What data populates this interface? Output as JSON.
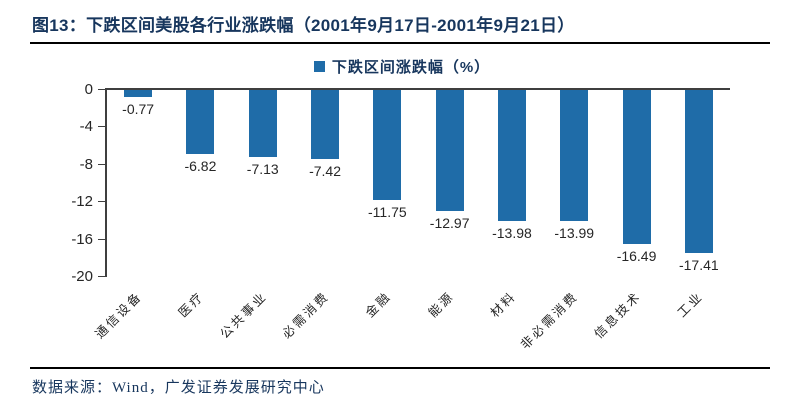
{
  "header": {
    "title": "图13：下跌区间美股各行业涨跌幅（2001年9月17日-2001年9月21日）"
  },
  "legend": {
    "label": "下跌区间涨跌幅（%）",
    "marker_color": "#1f6ca8"
  },
  "footer": {
    "source": "数据来源：Wind，广发证券发展研究中心"
  },
  "chart_data": {
    "type": "bar",
    "title": "下跌区间美股各行业涨跌幅（2001年9月17日-2001年9月21日）",
    "legend": "下跌区间涨跌幅（%）",
    "categories": [
      "通信设备",
      "医疗",
      "公共事业",
      "必需消费",
      "金融",
      "能源",
      "材料",
      "非必需消费",
      "信息技术",
      "工业"
    ],
    "values": [
      -0.77,
      -6.82,
      -7.13,
      -7.42,
      -11.75,
      -12.97,
      -13.98,
      -13.99,
      -16.49,
      -17.41
    ],
    "data_labels": [
      "-0.77",
      "-6.82",
      "-7.13",
      "-7.42",
      "-11.75",
      "-12.97",
      "-13.98",
      "-13.99",
      "-16.49",
      "-17.41"
    ],
    "y_ticks": [
      0,
      -4,
      -8,
      -12,
      -16,
      -20
    ],
    "ylim": [
      -20,
      0
    ],
    "xlabel": "",
    "ylabel": "",
    "bar_color": "#1f6ca8",
    "axis_color": "#3f3f3f",
    "grid": false,
    "legend_position": "top-center"
  }
}
